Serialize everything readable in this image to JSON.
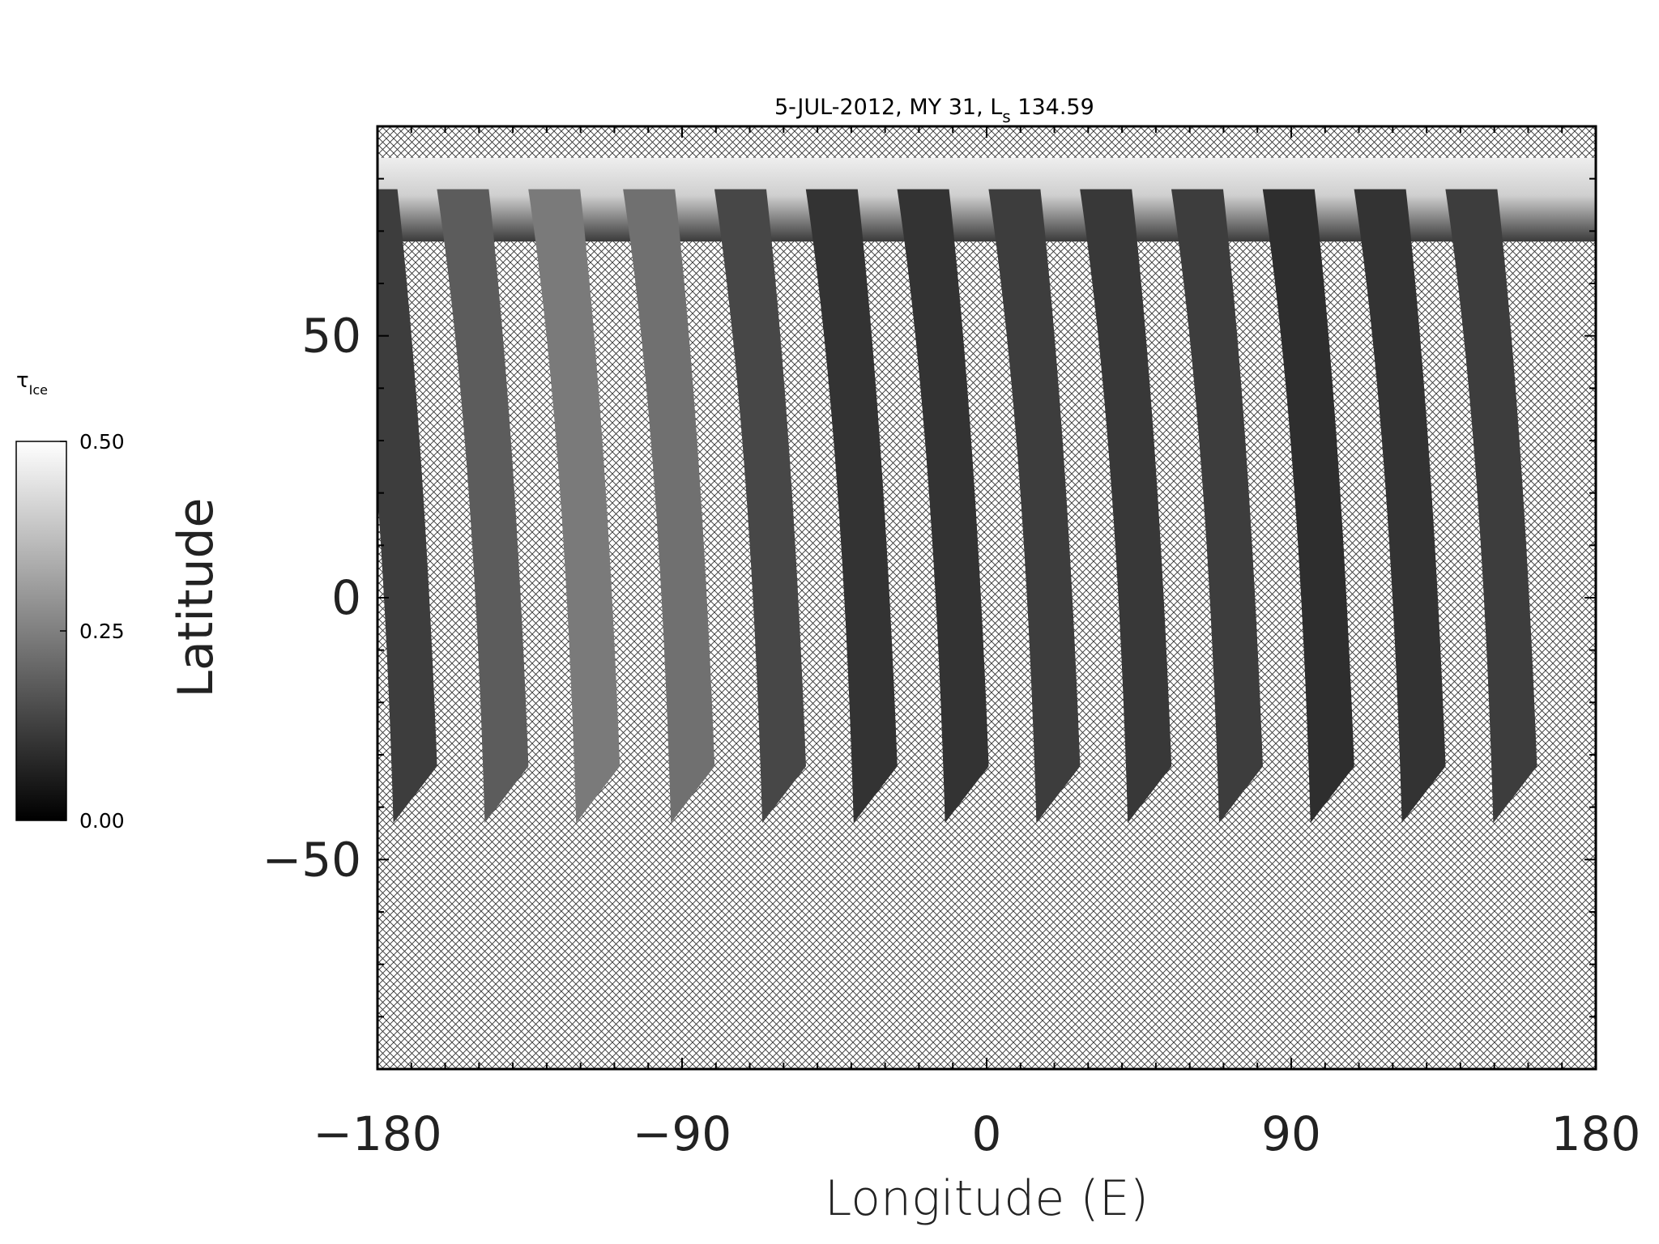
{
  "chart_data": {
    "type": "heatmap",
    "title": "5-JUL-2012, MY 31,  L",
    "title_subscript": "s",
    "title_suffix": " 134.59",
    "xlabel": "Longitude (E)",
    "ylabel": "Latitude",
    "xlim": [
      -180,
      180
    ],
    "ylim": [
      -90,
      90
    ],
    "x_ticks": [
      -180,
      -90,
      0,
      90,
      180
    ],
    "x_tick_labels": [
      "−180",
      "−90",
      "0",
      "90",
      "180"
    ],
    "y_ticks": [
      50,
      0,
      -50
    ],
    "y_tick_labels": [
      "50",
      "0",
      "−50"
    ],
    "grid": false,
    "no_data_fill": "crosshatch",
    "colorbar": {
      "label": "τ",
      "label_subscript": "Ice",
      "range": [
        0.0,
        0.5
      ],
      "ticks": [
        0.5,
        0.25,
        0.0
      ],
      "tick_labels": [
        "0.50",
        "0.25",
        "0.00"
      ],
      "colors": [
        "#000000",
        "#ffffff"
      ],
      "placement": "left"
    },
    "swaths": [
      {
        "center_lon": -171,
        "lat_range": [
          -43,
          60
        ],
        "mean_value": 0.12
      },
      {
        "center_lon": -144,
        "lat_range": [
          -43,
          60
        ],
        "mean_value": 0.18
      },
      {
        "center_lon": -117,
        "lat_range": [
          -43,
          60
        ],
        "mean_value": 0.24
      },
      {
        "center_lon": -89,
        "lat_range": [
          -43,
          60
        ],
        "mean_value": 0.22
      },
      {
        "center_lon": -62,
        "lat_range": [
          -43,
          60
        ],
        "mean_value": 0.14
      },
      {
        "center_lon": -35,
        "lat_range": [
          -43,
          60
        ],
        "mean_value": 0.1
      },
      {
        "center_lon": -8,
        "lat_range": [
          -43,
          60
        ],
        "mean_value": 0.1
      },
      {
        "center_lon": 19,
        "lat_range": [
          -43,
          60
        ],
        "mean_value": 0.12
      },
      {
        "center_lon": 46,
        "lat_range": [
          -43,
          60
        ],
        "mean_value": 0.11
      },
      {
        "center_lon": 73,
        "lat_range": [
          -43,
          60
        ],
        "mean_value": 0.12
      },
      {
        "center_lon": 100,
        "lat_range": [
          -43,
          60
        ],
        "mean_value": 0.09
      },
      {
        "center_lon": 127,
        "lat_range": [
          -43,
          60
        ],
        "mean_value": 0.1
      },
      {
        "center_lon": 154,
        "lat_range": [
          -43,
          60
        ],
        "mean_value": 0.12
      }
    ]
  }
}
